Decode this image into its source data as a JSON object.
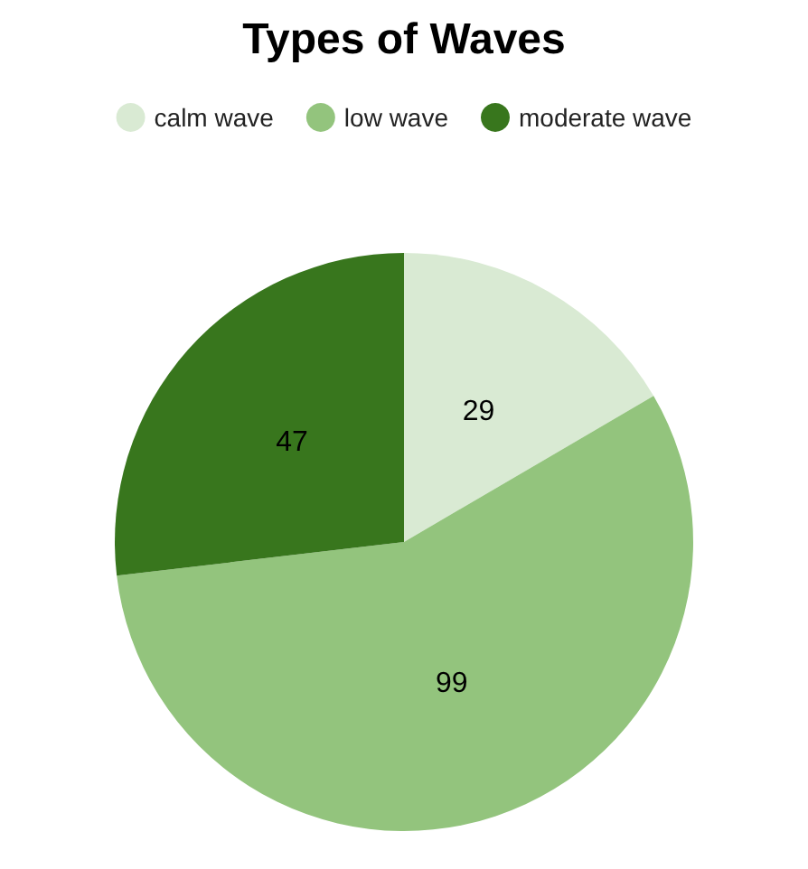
{
  "chart_data": {
    "type": "pie",
    "title": "Types of Waves",
    "categories": [
      "calm wave",
      "low wave",
      "moderate wave"
    ],
    "values": [
      29,
      99,
      47
    ],
    "colors": [
      "#d9ead3",
      "#93c47d",
      "#38761d"
    ],
    "data_labels": true,
    "legend": "top"
  }
}
